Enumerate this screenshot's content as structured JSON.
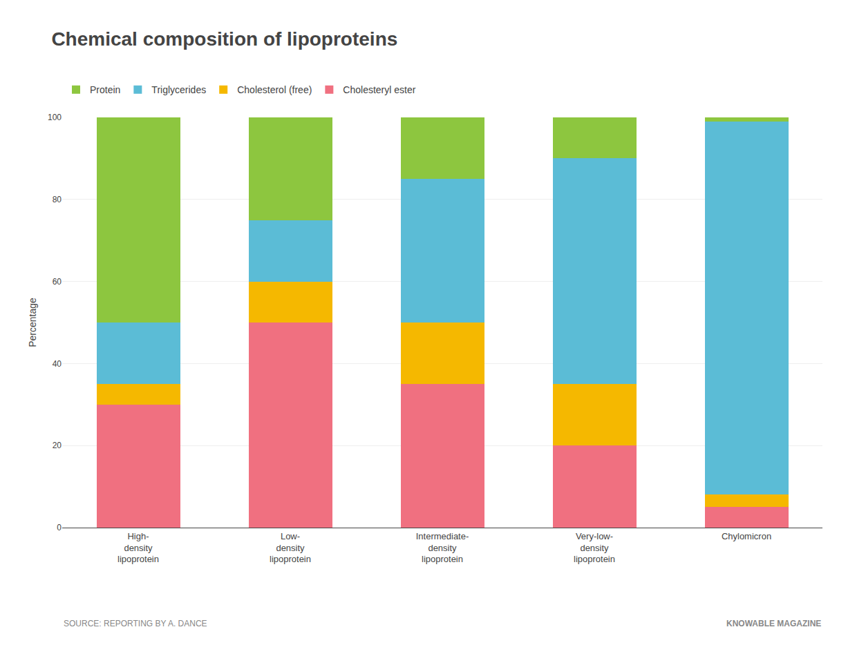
{
  "chart_data": {
    "type": "bar",
    "stacked": true,
    "title": "Chemical composition of lipoproteins",
    "y_label": "Percentage",
    "categories": [
      "High-\ndensity\nlipoprotein",
      "Low-\ndensity\nlipoprotein",
      "Intermediate-\ndensity\nlipoprotein",
      "Very-low-\ndensity\nlipoprotein",
      "Chylomicron"
    ],
    "series": [
      {
        "name": "Cholesteryl ester",
        "color": "#F07080",
        "values": [
          30,
          50,
          35,
          20,
          5
        ]
      },
      {
        "name": "Cholesterol (free)",
        "color": "#F5B800",
        "values": [
          5,
          10,
          15,
          15,
          3
        ]
      },
      {
        "name": "Triglycerides",
        "color": "#5BBCD6",
        "values": [
          15,
          15,
          35,
          55,
          91
        ]
      },
      {
        "name": "Protein",
        "color": "#8DC63F",
        "values": [
          50,
          25,
          15,
          10,
          1
        ]
      }
    ],
    "ylim": [
      0,
      100
    ],
    "yticks": [
      0,
      20,
      40,
      60,
      80,
      100
    ],
    "grid": true,
    "legend": "top",
    "annotations": [
      "SOURCE: REPORTING BY A. DANCE",
      "KNOWABLE MAGAZINE"
    ]
  }
}
